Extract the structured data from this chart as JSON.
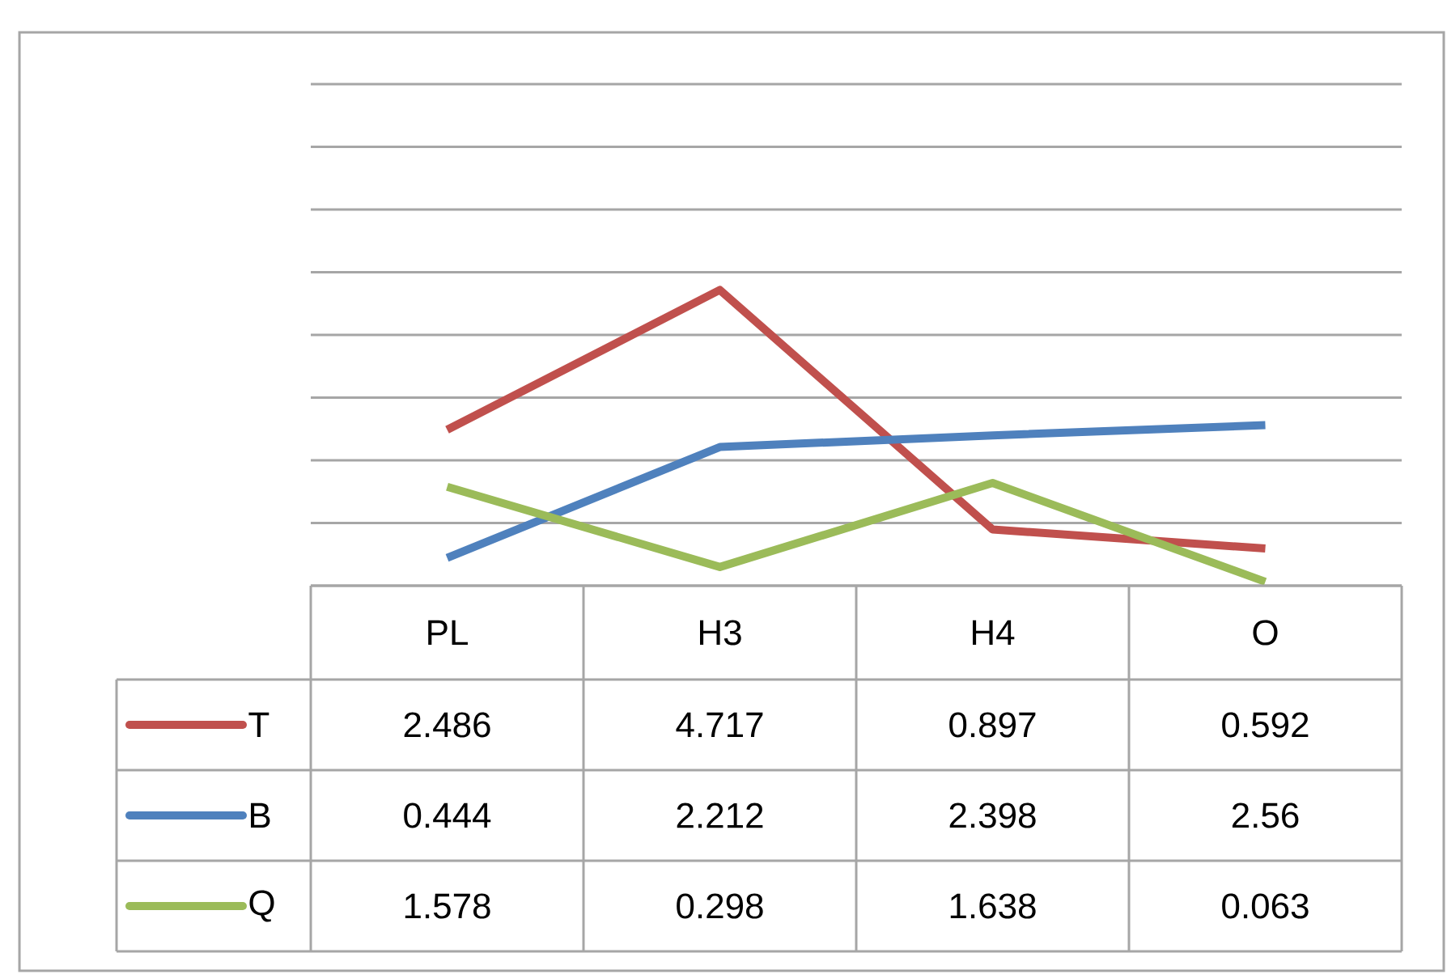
{
  "chart_data": {
    "type": "line",
    "categories": [
      "PL",
      "H3",
      "H4",
      "O"
    ],
    "series": [
      {
        "name": "T",
        "color": "#c0504d",
        "values": [
          2.486,
          4.717,
          0.897,
          0.592
        ]
      },
      {
        "name": "B",
        "color": "#4f81bd",
        "values": [
          0.444,
          2.212,
          2.398,
          2.56
        ]
      },
      {
        "name": "Q",
        "color": "#9bbb59",
        "values": [
          1.578,
          0.298,
          1.638,
          0.063
        ]
      }
    ],
    "ylim": [
      0,
      8
    ],
    "yticks": [
      {
        "value": 0,
        "label": null
      },
      {
        "value": 1,
        "label": null
      },
      {
        "value": 2,
        "label": null
      },
      {
        "value": 3,
        "label": null
      },
      {
        "value": 4,
        "label": null
      },
      {
        "value": 5,
        "label": null
      },
      {
        "value": 6,
        "label": null
      },
      {
        "value": 7,
        "label": null
      },
      {
        "value": 8,
        "label": null
      }
    ],
    "grid": "y",
    "legend": "bottom",
    "data_labels": true,
    "marker": "none",
    "line_style": "solid"
  }
}
